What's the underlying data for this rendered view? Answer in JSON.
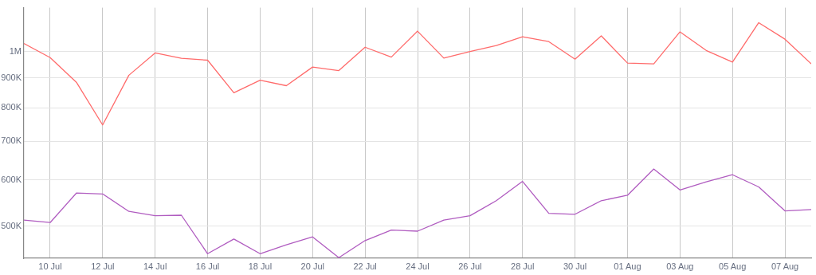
{
  "chart_data": {
    "type": "line",
    "x": [
      "--07-09",
      "--07-10",
      "--07-11",
      "--07-12",
      "--07-13",
      "--07-14",
      "--07-15",
      "--07-16",
      "--07-17",
      "--07-18",
      "--07-19",
      "--07-20",
      "--07-21",
      "--07-22",
      "--07-23",
      "--07-24",
      "--07-25",
      "--07-26",
      "--07-27",
      "--07-28",
      "--07-29",
      "--07-30",
      "--07-31",
      "--08-01",
      "--08-02",
      "--08-03",
      "--08-04",
      "--08-05",
      "--08-06",
      "--08-07",
      "--08-08"
    ],
    "series": [
      {
        "color": "#ff6b6b",
        "values": [
          1032000,
          976000,
          885000,
          747000,
          910000,
          994000,
          973000,
          966000,
          849000,
          892000,
          873000,
          940000,
          927000,
          1017000,
          978000,
          1084000,
          974000,
          1000000,
          1024000,
          1060000,
          1040000,
          970000,
          1064000,
          955000,
          952000,
          1081000,
          1004000,
          959000,
          1121000,
          1050000,
          952000
        ]
      },
      {
        "color": "#b05cc0",
        "values": [
          512000,
          507000,
          570000,
          568000,
          530000,
          521000,
          522000,
          448000,
          475000,
          448000,
          464000,
          479000,
          441000,
          472000,
          492000,
          490000,
          512000,
          521000,
          553000,
          597000,
          526000,
          524000,
          553000,
          565000,
          627000,
          577000,
          596000,
          613000,
          584000,
          531000,
          534000
        ]
      }
    ],
    "xlim": [
      "--07-09",
      "--08-08"
    ],
    "xticks": [
      {
        "value": "--07-10",
        "label": "10 Jul"
      },
      {
        "value": "--07-12",
        "label": "12 Jul"
      },
      {
        "value": "--07-14",
        "label": "14 Jul"
      },
      {
        "value": "--07-16",
        "label": "16 Jul"
      },
      {
        "value": "--07-18",
        "label": "18 Jul"
      },
      {
        "value": "--07-20",
        "label": "20 Jul"
      },
      {
        "value": "--07-22",
        "label": "22 Jul"
      },
      {
        "value": "--07-24",
        "label": "24 Jul"
      },
      {
        "value": "--07-26",
        "label": "26 Jul"
      },
      {
        "value": "--07-28",
        "label": "28 Jul"
      },
      {
        "value": "--07-30",
        "label": "30 Jul"
      },
      {
        "value": "--08-01",
        "label": "01 Aug"
      },
      {
        "value": "--08-03",
        "label": "03 Aug"
      },
      {
        "value": "--08-05",
        "label": "05 Aug"
      },
      {
        "value": "--08-07",
        "label": "07 Aug"
      }
    ],
    "ylim": [
      440000,
      1190000
    ],
    "yticks": [
      {
        "value": 500000,
        "label": "500K"
      },
      {
        "value": 600000,
        "label": "600K"
      },
      {
        "value": 700000,
        "label": "700K"
      },
      {
        "value": 800000,
        "label": "800K"
      },
      {
        "value": 900000,
        "label": "900K"
      },
      {
        "value": 1000000,
        "label": "1M"
      }
    ],
    "log": "y",
    "grid": true,
    "legend": false,
    "marker": "none",
    "line_style": "solid"
  }
}
